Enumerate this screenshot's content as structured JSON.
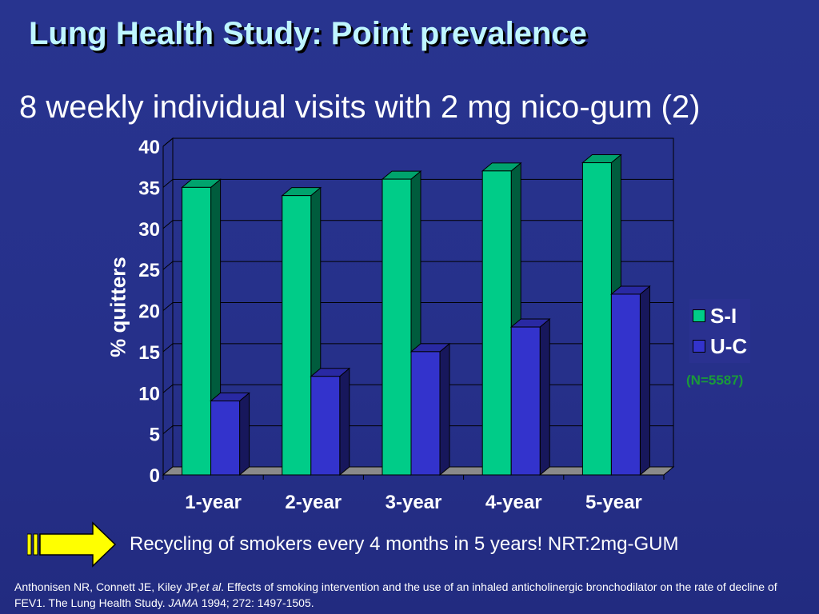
{
  "slide": {
    "title": "Lung Health Study: Point prevalence",
    "subtitle": "8 weekly individual visits with 2 mg nico-gum (2)",
    "note": "(N=5587)",
    "recycling_text": "Recycling of smokers every 4 months in 5 years! NRT:2mg-GUM",
    "citation": {
      "authors": "Anthonisen NR, Connett JE, Kiley JP,",
      "et_al": "et al",
      "text1": ". Effects of smoking intervention and the use of an inhaled anticholinergic bronchodilator on the rate of decline of FEV1. The Lung Health Study. ",
      "journal": "JAMA",
      "text2": " 1994; 272: 1497-1505."
    }
  },
  "colors": {
    "series_SI": "#00cc88",
    "series_UC": "#3333cc",
    "title": "#bff6ff",
    "note": "#1a9a3a",
    "arrow": "#ffff00"
  },
  "chart_data": {
    "type": "bar",
    "title": "",
    "xlabel": "",
    "ylabel": "% quitters",
    "categories": [
      "1-year",
      "2-year",
      "3-year",
      "4-year",
      "5-year"
    ],
    "series": [
      {
        "name": "S-I",
        "values": [
          35,
          34,
          36,
          37,
          38
        ]
      },
      {
        "name": "U-C",
        "values": [
          9,
          12,
          15,
          18,
          22
        ]
      }
    ],
    "ylim": [
      0,
      40
    ],
    "yticks": [
      0,
      5,
      10,
      15,
      20,
      25,
      30,
      35,
      40
    ],
    "grid": true,
    "legend": "right",
    "style": "3d"
  }
}
